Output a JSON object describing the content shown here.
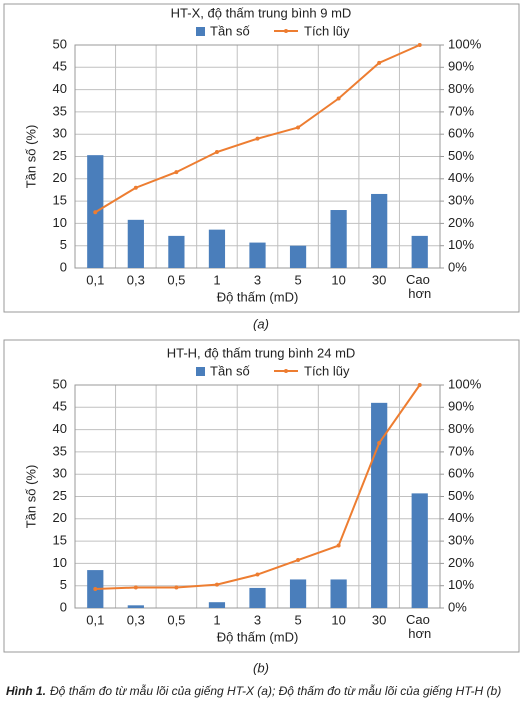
{
  "chart_data": [
    {
      "type": "bar",
      "title": "HT-X, độ thấm trung bình 9 mD",
      "xlabel": "Độ thấm (mD)",
      "ylabel": "Tần số (%)",
      "categories": [
        "0,1",
        "0,3",
        "0,5",
        "1",
        "3",
        "5",
        "10",
        "30",
        "Cao hơn"
      ],
      "series": [
        {
          "name": "Tần số",
          "type": "bar",
          "color": "#4a7ebb",
          "values": [
            25.3,
            10.8,
            7.2,
            8.6,
            5.7,
            5.0,
            13.0,
            16.6,
            7.2
          ]
        },
        {
          "name": "Tích lũy",
          "type": "line",
          "axis": "y2",
          "color": "#ed7d31",
          "values": [
            25,
            36,
            43,
            52,
            58,
            63,
            76,
            92,
            100
          ]
        }
      ],
      "ylim": [
        0,
        50
      ],
      "yticks": [
        0,
        5,
        10,
        15,
        20,
        25,
        30,
        35,
        40,
        45,
        50
      ],
      "y2lim": [
        0,
        100
      ],
      "y2ticks": [
        {
          "value": 0,
          "label": "0%"
        },
        {
          "value": 10,
          "label": "10%"
        },
        {
          "value": 20,
          "label": "20%"
        },
        {
          "value": 30,
          "label": "30%"
        },
        {
          "value": 40,
          "label": "40%"
        },
        {
          "value": 50,
          "label": "50%"
        },
        {
          "value": 60,
          "label": "60%"
        },
        {
          "value": 70,
          "label": "70%"
        },
        {
          "value": 80,
          "label": "80%"
        },
        {
          "value": 90,
          "label": "90%"
        },
        {
          "value": 100,
          "label": "100%"
        }
      ],
      "grid": true,
      "legend": "top"
    },
    {
      "type": "bar",
      "title": "HT-H, độ thấm trung bình 24 mD",
      "xlabel": "Độ thấm (mD)",
      "ylabel": "Tần số (%)",
      "categories": [
        "0,1",
        "0,3",
        "0,5",
        "1",
        "3",
        "5",
        "10",
        "30",
        "Cao hơn"
      ],
      "series": [
        {
          "name": "Tần số",
          "type": "bar",
          "color": "#4a7ebb",
          "values": [
            8.5,
            0.6,
            0,
            1.3,
            4.5,
            6.4,
            6.4,
            46,
            25.7
          ]
        },
        {
          "name": "Tích lũy",
          "type": "line",
          "axis": "y2",
          "color": "#ed7d31",
          "values": [
            8.5,
            9.2,
            9.2,
            10.5,
            15,
            21.5,
            28,
            74,
            100
          ]
        }
      ],
      "ylim": [
        0,
        50
      ],
      "yticks": [
        0,
        5,
        10,
        15,
        20,
        25,
        30,
        35,
        40,
        45,
        50
      ],
      "y2lim": [
        0,
        100
      ],
      "y2ticks": [
        {
          "value": 0,
          "label": "0%"
        },
        {
          "value": 10,
          "label": "10%"
        },
        {
          "value": 20,
          "label": "20%"
        },
        {
          "value": 30,
          "label": "30%"
        },
        {
          "value": 40,
          "label": "40%"
        },
        {
          "value": 50,
          "label": "50%"
        },
        {
          "value": 60,
          "label": "60%"
        },
        {
          "value": 70,
          "label": "70%"
        },
        {
          "value": 80,
          "label": "80%"
        },
        {
          "value": 90,
          "label": "90%"
        },
        {
          "value": 100,
          "label": "100%"
        }
      ],
      "grid": true,
      "legend": "top"
    }
  ],
  "figure": {
    "labels": [
      "(a)",
      "(b)"
    ],
    "caption_bold": "Hình 1.",
    "caption": "Độ thấm đo từ mẫu lõi của giếng HT-X (a); Độ thấm đo từ mẫu lõi của giếng HT-H (b)"
  }
}
